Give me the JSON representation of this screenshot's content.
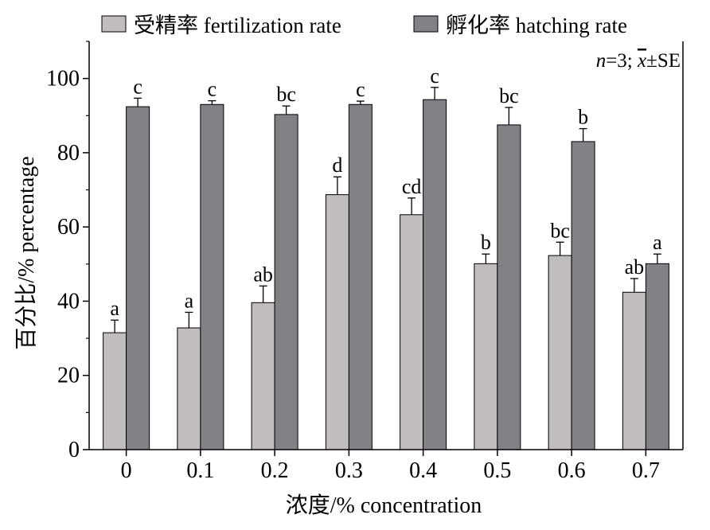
{
  "chart_data": {
    "type": "bar",
    "categories": [
      "0",
      "0.1",
      "0.2",
      "0.3",
      "0.4",
      "0.5",
      "0.6",
      "0.7"
    ],
    "series": [
      {
        "name": "受精率 fertilization rate",
        "color": "#c0bcc0",
        "values": [
          31.5,
          32.8,
          39.6,
          68.7,
          63.3,
          50.1,
          52.3,
          42.4
        ],
        "errors": [
          3.4,
          4.2,
          4.5,
          4.8,
          4.5,
          2.6,
          3.6,
          3.7
        ],
        "sig": [
          "a",
          "a",
          "ab",
          "d",
          "cd",
          "b",
          "bc",
          "ab"
        ]
      },
      {
        "name": "孵化率 hatching rate",
        "color": "#838185",
        "values": [
          92.4,
          93.0,
          90.3,
          93.0,
          94.3,
          87.5,
          83.0,
          50.1
        ],
        "errors": [
          2.3,
          1.0,
          2.3,
          0.9,
          3.3,
          4.7,
          3.5,
          2.6
        ],
        "sig": [
          "c",
          "c",
          "bc",
          "c",
          "c",
          "bc",
          "b",
          "a"
        ]
      }
    ],
    "xlabel": "浓度/% concentration",
    "ylabel": "百分比/% percentage",
    "ylim": [
      0,
      110
    ],
    "yticks": [
      0,
      20,
      40,
      60,
      80,
      100
    ],
    "annotation": {
      "n_label": "n",
      "n_value": "=3; ",
      "mean_symbol": "x",
      "suffix": "±SE"
    },
    "legend_position": "top",
    "grid": false
  }
}
